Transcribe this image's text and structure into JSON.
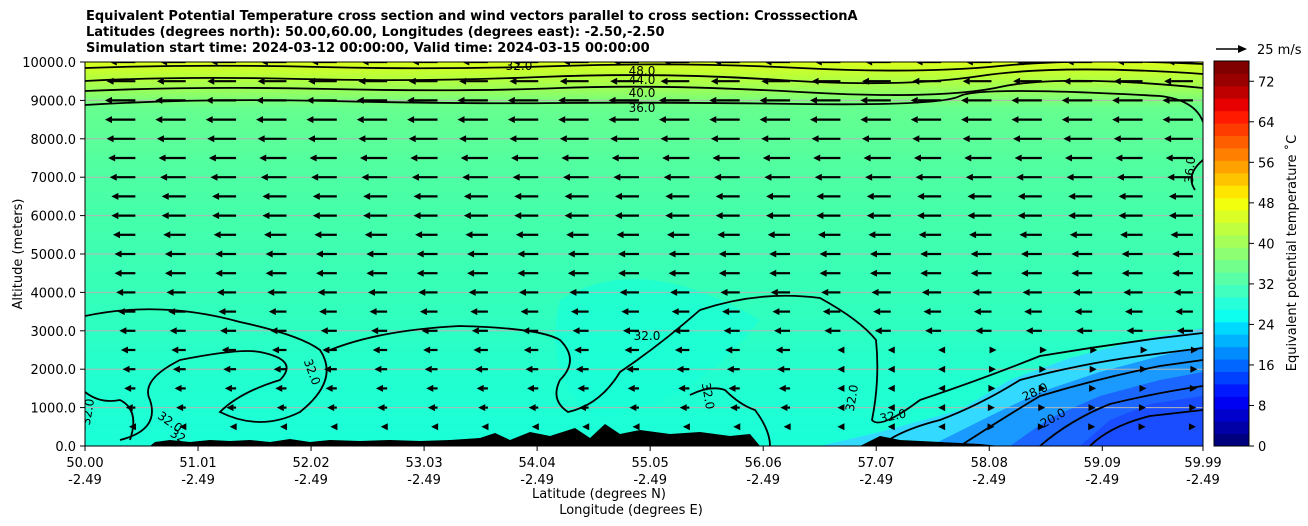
{
  "chart_data": {
    "type": "contour",
    "title_lines": [
      "Equivalent Potential Temperature cross section and wind vectors parallel to cross section: CrosssectionA",
      "Latitudes (degrees north): 50.00,60.00, Longitudes (degrees east): -2.50,-2.50",
      "Simulation start time: 2024-03-12 00:00:00, Valid time: 2024-03-15 00:00:00"
    ],
    "ylabel": "Altitude (meters)",
    "xlabel_lines": [
      "Latitude (degrees N)",
      "Longitude (degrees E)"
    ],
    "xlim": [
      50.0,
      59.99
    ],
    "ylim": [
      0,
      10000
    ],
    "y_ticks": [
      0,
      1000,
      2000,
      3000,
      4000,
      5000,
      6000,
      7000,
      8000,
      9000,
      10000
    ],
    "y_tick_labels": [
      "0.0",
      "1000.0",
      "2000.0",
      "3000.0",
      "4000.0",
      "5000.0",
      "6000.0",
      "7000.0",
      "8000.0",
      "9000.0",
      "10000.0"
    ],
    "x_ticks": [
      50.0,
      51.01,
      52.02,
      53.03,
      54.04,
      55.05,
      56.06,
      57.07,
      58.08,
      59.09,
      59.99
    ],
    "x_tick_lat_labels": [
      "50.00",
      "51.01",
      "52.02",
      "53.03",
      "54.04",
      "55.05",
      "56.06",
      "57.07",
      "58.08",
      "59.09",
      "59.99"
    ],
    "x_tick_lon_labels": [
      "-2.49",
      "-2.49",
      "-2.49",
      "-2.49",
      "-2.49",
      "-2.49",
      "-2.49",
      "-2.49",
      "-2.49",
      "-2.49",
      "-2.49"
    ],
    "colorbar": {
      "label": "Equivalent potential temperature ˚C",
      "min": 0,
      "max": 76,
      "ticks": [
        0,
        8,
        16,
        24,
        32,
        40,
        48,
        56,
        64,
        72
      ],
      "tick_labels": [
        "0",
        "8",
        "16",
        "24",
        "32",
        "40",
        "48",
        "56",
        "64",
        "72"
      ]
    },
    "contour_labels": [
      "48.0",
      "44.0",
      "40.0",
      "36.0",
      "32.0",
      "32.0",
      "32.0",
      "32.0",
      "32.0",
      "32.0",
      "28.0",
      "20.0",
      "36.0",
      "32.0",
      "32.0",
      "32"
    ],
    "quiver_key": {
      "label": "25 m/s",
      "speed": 25
    },
    "wind_grid": {
      "altitudes": [
        500,
        1000,
        1500,
        2000,
        2500,
        3000,
        3500,
        4000,
        4500,
        5000,
        5500,
        6000,
        6500,
        7000,
        7500,
        8000,
        8500,
        9000,
        9500,
        10000
      ],
      "latitudes": [
        50.0,
        50.45,
        50.9,
        51.35,
        51.8,
        52.25,
        52.7,
        53.15,
        53.6,
        54.05,
        54.5,
        54.95,
        55.4,
        55.85,
        56.3,
        56.75,
        57.2,
        57.65,
        58.1,
        58.55,
        59.0,
        59.45,
        59.9
      ],
      "u_by_level": [
        -4,
        -6,
        -7,
        -8,
        -9,
        -10,
        -11,
        -12,
        -13,
        -13,
        -14,
        -15,
        -15,
        -16,
        -17,
        -18,
        -19,
        -19,
        -18,
        -16
      ]
    }
  }
}
